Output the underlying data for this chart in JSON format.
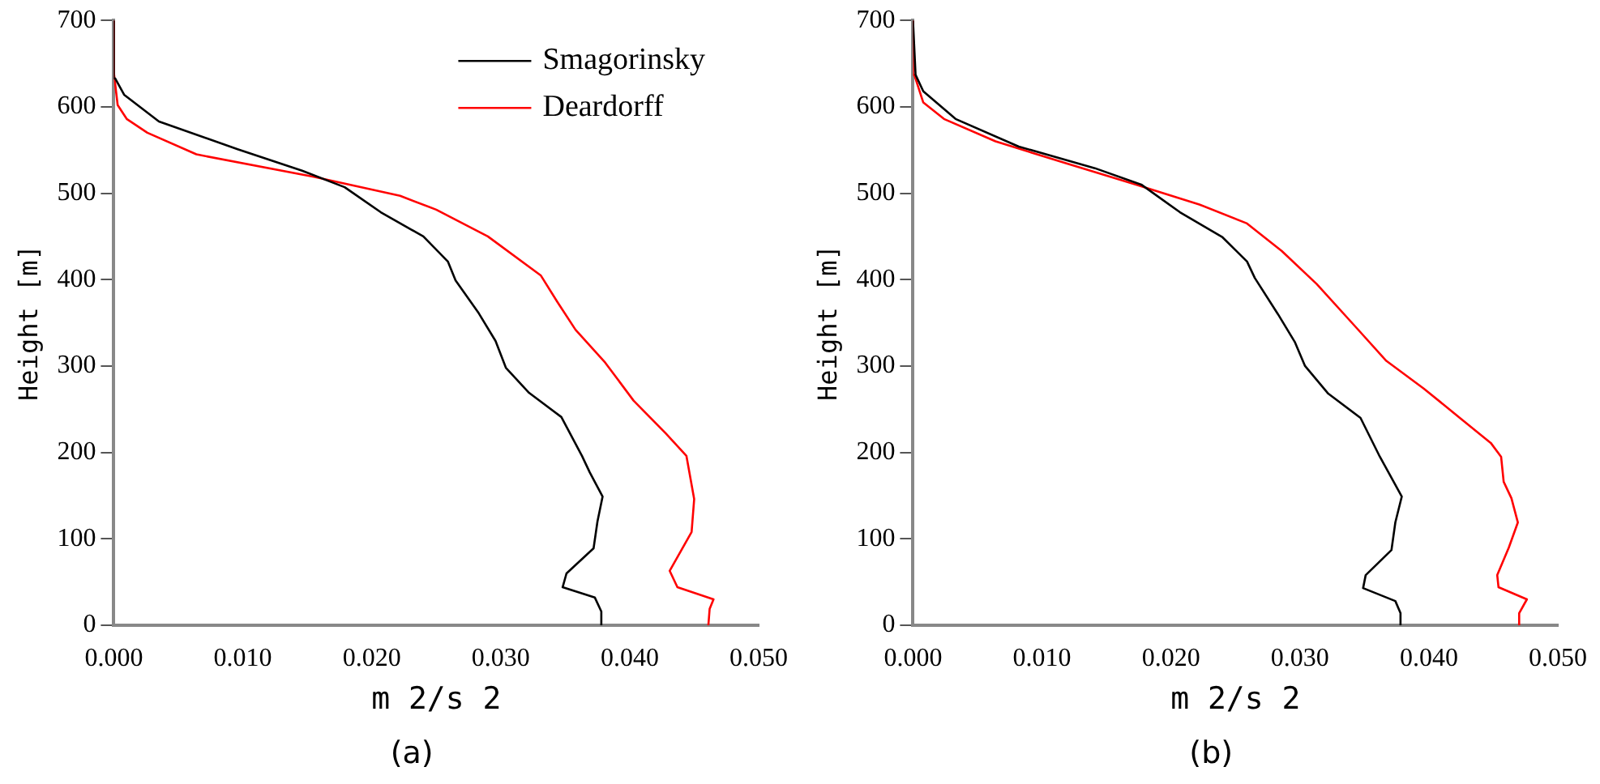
{
  "chart_data": [
    {
      "type": "line",
      "xlabel": "m 2/s 2",
      "ylabel": "Height [m]",
      "annotations": [
        "(a)"
      ],
      "legend": "top right",
      "grid": false,
      "marker": "none",
      "line_style": "solid",
      "xlim": [
        0,
        0.05
      ],
      "xticks": [
        {
          "value": 0,
          "label": "0.000"
        },
        {
          "value": 0.01,
          "label": "0.010"
        },
        {
          "value": 0.02,
          "label": "0.020"
        },
        {
          "value": 0.03,
          "label": "0.030"
        },
        {
          "value": 0.04,
          "label": "0.040"
        },
        {
          "value": 0.05,
          "label": "0.050"
        }
      ],
      "ylim": [
        0,
        700
      ],
      "yticks": [
        0,
        100,
        200,
        300,
        400,
        500,
        600,
        700
      ],
      "series": [
        {
          "name": "Smagorinsky",
          "color": "#000000",
          "x": [
            0.0378,
            0.0378,
            0.0373,
            0.0348,
            0.0351,
            0.0372,
            0.0375,
            0.0379,
            0.0369,
            0.0363,
            0.0347,
            0.0322,
            0.0304,
            0.0296,
            0.0283,
            0.0265,
            0.0259,
            0.024,
            0.0207,
            0.0179,
            0.0146,
            0.0096,
            0.0035,
            0.0008,
            0.0001,
            0
          ],
          "values": [
            0,
            16,
            32,
            44,
            60,
            89,
            120,
            149,
            177,
            196,
            241,
            269,
            298,
            329,
            361,
            399,
            421,
            450,
            478,
            507,
            526,
            551,
            583,
            614,
            633,
            700
          ]
        },
        {
          "name": "Deardorff",
          "color": "#ff0000",
          "x": [
            0.0461,
            0.0462,
            0.0465,
            0.0437,
            0.0431,
            0.0448,
            0.045,
            0.0444,
            0.0428,
            0.0403,
            0.0381,
            0.0358,
            0.0344,
            0.0331,
            0.029,
            0.025,
            0.0222,
            0.0155,
            0.0064,
            0.0026,
            0.001,
            0.0003,
            0,
            0
          ],
          "values": [
            0,
            19,
            30,
            44,
            63,
            108,
            146,
            196,
            222,
            260,
            304,
            342,
            374,
            405,
            450,
            481,
            497,
            519,
            545,
            570,
            586,
            602,
            640,
            700
          ]
        }
      ]
    },
    {
      "type": "line",
      "xlabel": "m 2/s 2",
      "ylabel": "Height [m]",
      "annotations": [
        "(b)"
      ],
      "grid": false,
      "marker": "none",
      "line_style": "solid",
      "xlim": [
        0,
        0.05
      ],
      "xticks": [
        {
          "value": 0,
          "label": "0.000"
        },
        {
          "value": 0.01,
          "label": "0.010"
        },
        {
          "value": 0.02,
          "label": "0.020"
        },
        {
          "value": 0.03,
          "label": "0.030"
        },
        {
          "value": 0.04,
          "label": "0.040"
        },
        {
          "value": 0.05,
          "label": "0.050"
        }
      ],
      "ylim": [
        0,
        700
      ],
      "yticks": [
        0,
        100,
        200,
        300,
        400,
        500,
        600,
        700
      ],
      "series": [
        {
          "color": "#000000",
          "x": [
            0.0378,
            0.0378,
            0.0374,
            0.0349,
            0.0351,
            0.0371,
            0.0374,
            0.0379,
            0.0369,
            0.0362,
            0.0347,
            0.0322,
            0.0304,
            0.0296,
            0.0283,
            0.0265,
            0.0259,
            0.024,
            0.0207,
            0.0177,
            0.0141,
            0.0082,
            0.0033,
            0.0008,
            0.0002,
            0
          ],
          "values": [
            0,
            14,
            28,
            43,
            58,
            87,
            119,
            149,
            176,
            195,
            240,
            268,
            300,
            328,
            360,
            402,
            421,
            449,
            478,
            510,
            529,
            554,
            586,
            618,
            637,
            700
          ]
        },
        {
          "color": "#ff0000",
          "x": [
            0.047,
            0.047,
            0.0476,
            0.0454,
            0.0453,
            0.0462,
            0.0469,
            0.0464,
            0.0458,
            0.0456,
            0.0448,
            0.0424,
            0.0396,
            0.0367,
            0.0344,
            0.0313,
            0.0286,
            0.0259,
            0.0222,
            0.0173,
            0.0118,
            0.0064,
            0.0024,
            0.0008,
            0.0001,
            0
          ],
          "values": [
            0,
            14,
            30,
            44,
            58,
            90,
            119,
            147,
            166,
            195,
            211,
            240,
            274,
            306,
            344,
            395,
            433,
            465,
            487,
            510,
            535,
            560,
            586,
            605,
            637,
            700
          ]
        }
      ]
    }
  ]
}
